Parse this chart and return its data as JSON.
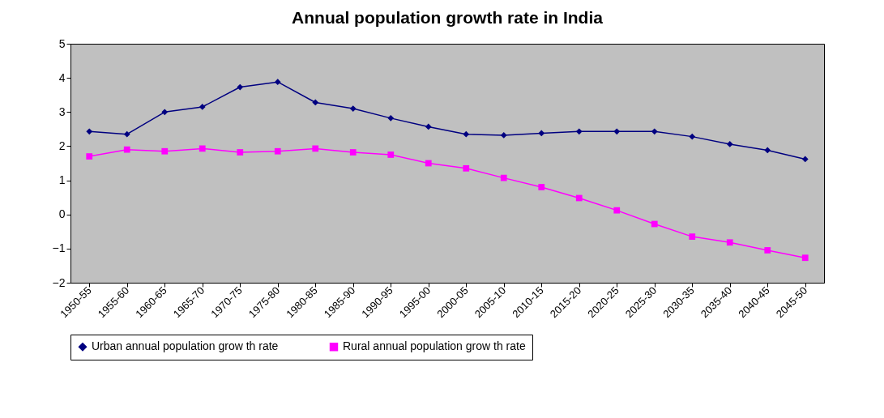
{
  "chart_data": {
    "type": "line",
    "title": "Annual population growth rate in India",
    "categories": [
      "1950-55",
      "1955-60",
      "1960-65",
      "1965-70",
      "1970-75",
      "1975-80",
      "1980-85",
      "1985-90",
      "1990-95",
      "1995-00",
      "2000-05",
      "2005-10",
      "2010-15",
      "2015-20",
      "2020-25",
      "2025-30",
      "2030-35",
      "2035-40",
      "2040-45",
      "2045-50"
    ],
    "series": [
      {
        "name": "Urban annual population grow th rate",
        "color": "#000080",
        "marker": "diamond",
        "values": [
          2.43,
          2.35,
          3.0,
          3.15,
          3.73,
          3.88,
          3.28,
          3.1,
          2.82,
          2.57,
          2.35,
          2.32,
          2.38,
          2.43,
          2.43,
          2.43,
          2.28,
          2.06,
          1.88,
          1.62
        ]
      },
      {
        "name": "Rural annual population grow th rate",
        "color": "#ff00ff",
        "marker": "square",
        "values": [
          1.7,
          1.9,
          1.85,
          1.93,
          1.82,
          1.85,
          1.93,
          1.82,
          1.75,
          1.5,
          1.35,
          1.07,
          0.8,
          0.48,
          0.12,
          -0.28,
          -0.65,
          -0.82,
          -1.05,
          -1.27
        ]
      }
    ],
    "ylim": [
      -2,
      5
    ],
    "yticks": [
      -2,
      -1,
      0,
      1,
      2,
      3,
      4,
      5
    ],
    "legend": "bottom"
  }
}
